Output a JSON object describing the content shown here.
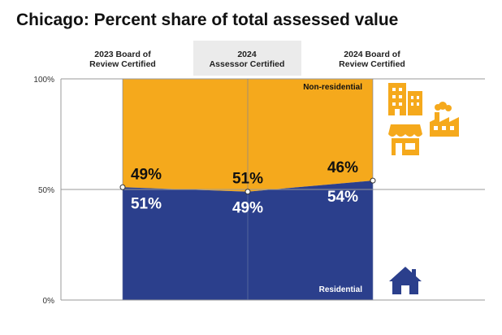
{
  "title": "Chicago: Percent share of total assessed value",
  "chart_data": {
    "type": "area",
    "stacked": true,
    "categories": [
      "2023 Board of Review Certified",
      "2024 Assessor Certified",
      "2024 Board of Review Certified"
    ],
    "category_lines": [
      [
        "2023 Board of",
        "Review Certified"
      ],
      [
        "2024",
        "Assessor Certified"
      ],
      [
        "2024 Board of",
        "Review Certified"
      ]
    ],
    "highlighted_category": 1,
    "series": [
      {
        "name": "Residential",
        "values": [
          51,
          49,
          54
        ],
        "labels": [
          "51%",
          "49%",
          "54%"
        ],
        "color": "#2b3f8c"
      },
      {
        "name": "Non-residential",
        "values": [
          49,
          51,
          46
        ],
        "labels": [
          "49%",
          "51%",
          "46%"
        ],
        "color": "#f5a91c"
      }
    ],
    "y_ticks": [
      "0%",
      "50%",
      "100%"
    ],
    "ylim": [
      0,
      100
    ],
    "grid": true
  },
  "icons": {
    "non_residential": [
      "office-buildings-icon",
      "factory-icon",
      "storefront-icon"
    ],
    "residential": [
      "house-icon"
    ]
  }
}
